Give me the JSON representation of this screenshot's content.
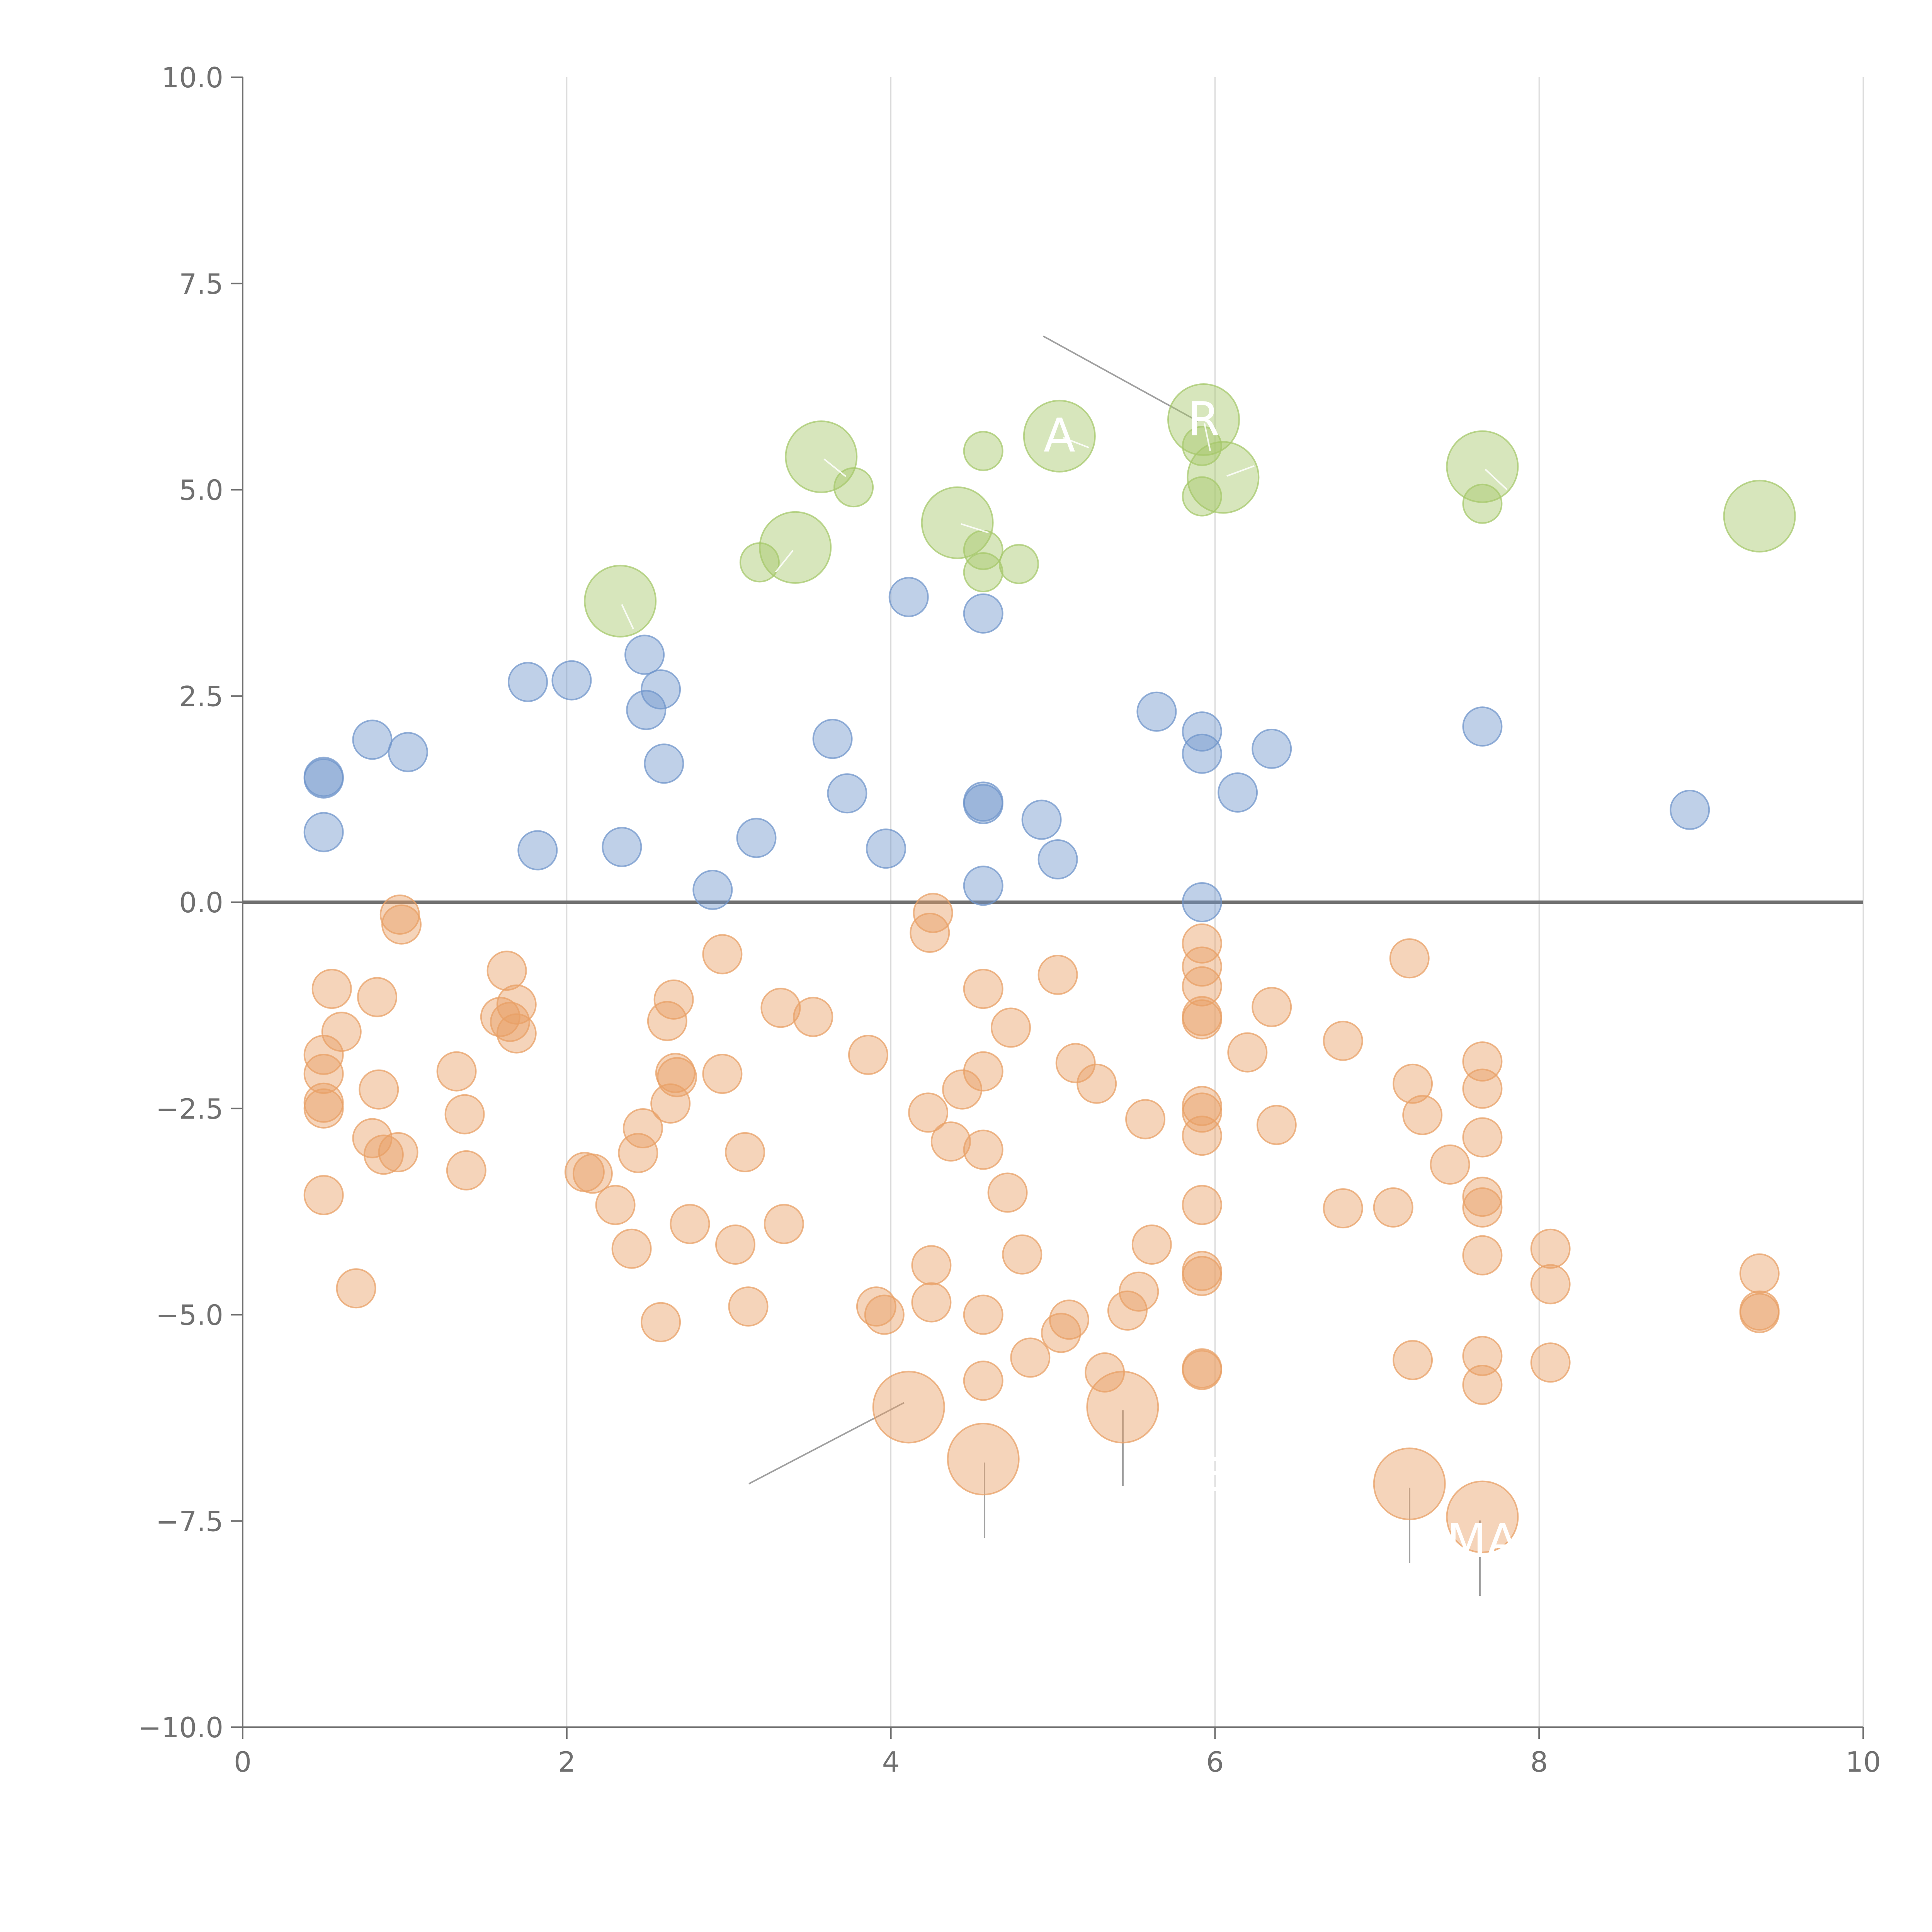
{
  "chart_data": {
    "type": "scatter",
    "title": "",
    "xlabel": "",
    "ylabel": "",
    "xlim": [
      0,
      10
    ],
    "ylim": [
      -10,
      10
    ],
    "x_ticks": [
      0,
      2,
      4,
      6,
      8,
      10
    ],
    "y_ticks": [
      -10.0,
      -7.5,
      -5.0,
      -2.5,
      0.0,
      2.5,
      5.0,
      7.5,
      10.0
    ],
    "x_tick_labels": [
      "0",
      "2",
      "4",
      "6",
      "8",
      "10"
    ],
    "y_tick_labels": [
      "−10.0",
      "−7.5",
      "−5.0",
      "−2.5",
      "0.0",
      "2.5",
      "5.0",
      "7.5",
      "10.0"
    ],
    "grid": "vertical",
    "reference_line_y": 0,
    "colors": {
      "green": "#a6c86b",
      "blue": "#7096cb",
      "orange": "#e8a065"
    },
    "series": [
      {
        "name": "green",
        "color": "#a6c86b",
        "points": [
          [
            2.33,
            3.65,
            "large"
          ],
          [
            3.41,
            4.3,
            "large"
          ],
          [
            3.57,
            5.4,
            "large"
          ],
          [
            4.41,
            4.6,
            "large"
          ],
          [
            5.04,
            5.65,
            "large"
          ],
          [
            5.93,
            5.85,
            "large"
          ],
          [
            6.05,
            5.15,
            "large"
          ],
          [
            7.65,
            5.28,
            "large"
          ],
          [
            9.36,
            4.68,
            "large"
          ],
          [
            3.19,
            4.12,
            "small"
          ],
          [
            3.77,
            5.03,
            "small"
          ],
          [
            4.57,
            5.47,
            "small"
          ],
          [
            4.57,
            4.27,
            "small"
          ],
          [
            4.57,
            4.0,
            "small"
          ],
          [
            4.79,
            4.1,
            "small"
          ],
          [
            5.92,
            5.53,
            "small"
          ],
          [
            5.92,
            4.92,
            "small"
          ],
          [
            7.65,
            4.83,
            "small"
          ]
        ]
      },
      {
        "name": "blue",
        "color": "#7096cb",
        "points": [
          [
            0.5,
            1.52,
            "small"
          ],
          [
            0.5,
            1.5,
            "small"
          ],
          [
            0.5,
            0.85,
            "small"
          ],
          [
            0.8,
            1.97,
            "small"
          ],
          [
            1.02,
            1.82,
            "small"
          ],
          [
            1.76,
            2.67,
            "small"
          ],
          [
            1.82,
            0.63,
            "small"
          ],
          [
            2.03,
            2.69,
            "small"
          ],
          [
            2.34,
            0.67,
            "small"
          ],
          [
            2.48,
            3.0,
            "small"
          ],
          [
            2.49,
            2.33,
            "small"
          ],
          [
            2.58,
            2.58,
            "small"
          ],
          [
            2.6,
            1.68,
            "small"
          ],
          [
            2.9,
            0.15,
            "small"
          ],
          [
            3.17,
            0.78,
            "small"
          ],
          [
            3.64,
            1.98,
            "small"
          ],
          [
            3.73,
            1.32,
            "small"
          ],
          [
            3.97,
            0.65,
            "small"
          ],
          [
            4.11,
            3.7,
            "small"
          ],
          [
            4.57,
            3.5,
            "small"
          ],
          [
            4.57,
            1.22,
            "small"
          ],
          [
            4.57,
            1.19,
            "small"
          ],
          [
            4.57,
            0.2,
            "small"
          ],
          [
            4.93,
            1.0,
            "small"
          ],
          [
            5.03,
            0.52,
            "small"
          ],
          [
            5.64,
            2.31,
            "small"
          ],
          [
            5.92,
            2.07,
            "small"
          ],
          [
            5.92,
            1.8,
            "small"
          ],
          [
            5.92,
            0.0,
            "small"
          ],
          [
            6.14,
            1.33,
            "small"
          ],
          [
            6.35,
            1.86,
            "small"
          ],
          [
            7.65,
            2.13,
            "small"
          ],
          [
            8.93,
            1.12,
            "small"
          ]
        ]
      },
      {
        "name": "orange",
        "color": "#e8a065",
        "points": [
          [
            0.5,
            -1.85,
            "small"
          ],
          [
            0.5,
            -2.08,
            "small"
          ],
          [
            0.5,
            -2.43,
            "small"
          ],
          [
            0.5,
            -2.5,
            "small"
          ],
          [
            0.5,
            -3.55,
            "small"
          ],
          [
            0.55,
            -1.05,
            "small"
          ],
          [
            0.61,
            -1.57,
            "small"
          ],
          [
            0.7,
            -4.68,
            "small"
          ],
          [
            0.8,
            -2.86,
            "small"
          ],
          [
            0.83,
            -1.15,
            "small"
          ],
          [
            0.84,
            -2.27,
            "small"
          ],
          [
            0.87,
            -3.06,
            "small"
          ],
          [
            0.96,
            -3.03,
            "small"
          ],
          [
            0.97,
            -0.15,
            "small"
          ],
          [
            0.98,
            -0.27,
            "small"
          ],
          [
            1.32,
            -2.05,
            "small"
          ],
          [
            1.37,
            -2.57,
            "small"
          ],
          [
            1.38,
            -3.25,
            "small"
          ],
          [
            1.59,
            -1.39,
            "small"
          ],
          [
            1.63,
            -0.83,
            "small"
          ],
          [
            1.65,
            -1.45,
            "small"
          ],
          [
            1.69,
            -1.24,
            "small"
          ],
          [
            1.69,
            -1.59,
            "small"
          ],
          [
            2.11,
            -3.27,
            "small"
          ],
          [
            2.16,
            -3.29,
            "small"
          ],
          [
            2.3,
            -3.67,
            "small"
          ],
          [
            2.4,
            -4.2,
            "small"
          ],
          [
            2.44,
            -3.04,
            "small"
          ],
          [
            2.47,
            -2.74,
            "small"
          ],
          [
            2.58,
            -5.09,
            "small"
          ],
          [
            2.62,
            -1.44,
            "small"
          ],
          [
            2.64,
            -2.44,
            "small"
          ],
          [
            2.66,
            -1.18,
            "small"
          ],
          [
            2.67,
            -2.07,
            "small"
          ],
          [
            2.68,
            -2.12,
            "small"
          ],
          [
            2.76,
            -3.9,
            "small"
          ],
          [
            2.96,
            -2.08,
            "small"
          ],
          [
            2.96,
            -0.63,
            "small"
          ],
          [
            3.04,
            -4.15,
            "small"
          ],
          [
            3.1,
            -3.03,
            "small"
          ],
          [
            3.12,
            -4.9,
            "small"
          ],
          [
            3.32,
            -1.28,
            "small"
          ],
          [
            3.34,
            -3.9,
            "small"
          ],
          [
            3.52,
            -1.39,
            "small"
          ],
          [
            3.86,
            -1.85,
            "small"
          ],
          [
            3.91,
            -4.9,
            "small"
          ],
          [
            3.96,
            -5.0,
            "small"
          ],
          [
            4.23,
            -2.55,
            "small"
          ],
          [
            4.24,
            -0.37,
            "small"
          ],
          [
            4.25,
            -4.4,
            "small"
          ],
          [
            4.25,
            -4.85,
            "small"
          ],
          [
            4.26,
            -0.13,
            "small"
          ],
          [
            4.37,
            -2.9,
            "small"
          ],
          [
            4.44,
            -2.27,
            "small"
          ],
          [
            4.57,
            -1.05,
            "small"
          ],
          [
            4.57,
            -2.05,
            "small"
          ],
          [
            4.57,
            -3.0,
            "small"
          ],
          [
            4.57,
            -5.0,
            "small"
          ],
          [
            4.57,
            -5.8,
            "small"
          ],
          [
            4.72,
            -3.52,
            "small"
          ],
          [
            4.74,
            -1.52,
            "small"
          ],
          [
            4.81,
            -4.27,
            "small"
          ],
          [
            4.86,
            -5.52,
            "small"
          ],
          [
            5.03,
            -0.88,
            "small"
          ],
          [
            5.05,
            -5.22,
            "small"
          ],
          [
            5.1,
            -5.06,
            "small"
          ],
          [
            5.14,
            -1.95,
            "small"
          ],
          [
            5.27,
            -2.2,
            "small"
          ],
          [
            5.32,
            -5.7,
            "small"
          ],
          [
            5.46,
            -4.95,
            "small"
          ],
          [
            5.53,
            -4.72,
            "small"
          ],
          [
            5.57,
            -2.63,
            "small"
          ],
          [
            5.61,
            -4.15,
            "small"
          ],
          [
            5.92,
            -0.5,
            "small"
          ],
          [
            5.92,
            -0.78,
            "small"
          ],
          [
            5.92,
            -1.02,
            "small"
          ],
          [
            5.92,
            -1.38,
            "small"
          ],
          [
            5.92,
            -1.42,
            "small"
          ],
          [
            5.92,
            -2.47,
            "small"
          ],
          [
            5.92,
            -2.55,
            "small"
          ],
          [
            5.92,
            -2.83,
            "small"
          ],
          [
            5.92,
            -3.67,
            "small"
          ],
          [
            5.92,
            -4.47,
            "small"
          ],
          [
            5.92,
            -4.53,
            "small"
          ],
          [
            5.92,
            -5.65,
            "small"
          ],
          [
            5.92,
            -5.67,
            "small"
          ],
          [
            6.2,
            -1.82,
            "small"
          ],
          [
            6.35,
            -1.27,
            "small"
          ],
          [
            6.38,
            -2.7,
            "small"
          ],
          [
            6.79,
            -1.68,
            "small"
          ],
          [
            6.79,
            -3.71,
            "small"
          ],
          [
            7.1,
            -3.7,
            "small"
          ],
          [
            7.2,
            -0.68,
            "small"
          ],
          [
            7.22,
            -2.2,
            "small"
          ],
          [
            7.22,
            -5.55,
            "small"
          ],
          [
            7.28,
            -2.58,
            "small"
          ],
          [
            7.45,
            -3.18,
            "small"
          ],
          [
            7.65,
            -1.93,
            "small"
          ],
          [
            7.65,
            -2.26,
            "small"
          ],
          [
            7.65,
            -2.85,
            "small"
          ],
          [
            7.65,
            -3.57,
            "small"
          ],
          [
            7.65,
            -3.7,
            "small"
          ],
          [
            7.65,
            -4.28,
            "small"
          ],
          [
            7.65,
            -5.5,
            "small"
          ],
          [
            7.65,
            -5.85,
            "small"
          ],
          [
            8.07,
            -4.2,
            "small"
          ],
          [
            8.07,
            -4.63,
            "small"
          ],
          [
            8.07,
            -5.58,
            "small"
          ],
          [
            9.36,
            -4.5,
            "small"
          ],
          [
            9.36,
            -4.95,
            "small"
          ],
          [
            9.36,
            -4.98,
            "small"
          ],
          [
            4.11,
            -6.12,
            "large"
          ],
          [
            4.57,
            -6.75,
            "large"
          ],
          [
            5.43,
            -6.12,
            "large"
          ],
          [
            7.2,
            -7.05,
            "large"
          ],
          [
            7.65,
            -7.45,
            "large"
          ]
        ]
      }
    ],
    "annotations": [
      {
        "text": "A",
        "x": 5.04,
        "y": 5.65
      },
      {
        "text": "R",
        "x": 5.93,
        "y": 5.85
      },
      {
        "text": "E",
        "x": 5.95,
        "y": -6.95
      },
      {
        "text": "MA",
        "x": 7.65,
        "y": -7.75
      }
    ]
  }
}
